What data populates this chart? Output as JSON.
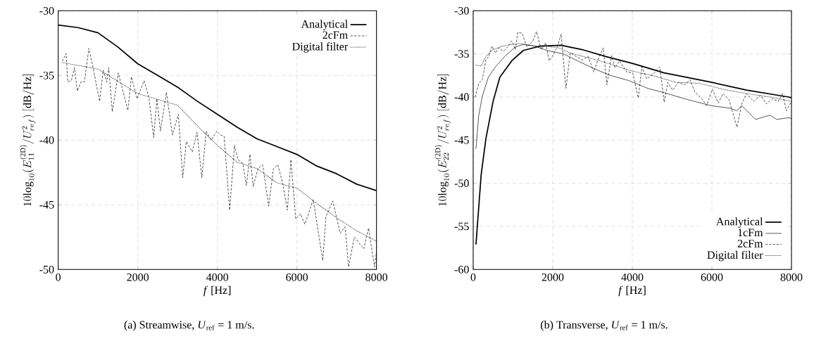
{
  "chart_data": [
    {
      "type": "line",
      "xlabel": "*f* [Hz]",
      "ylabel": "10\\mathrm{log}_{10}(E_{11}^{(\\mathrm{2D})}/U_{ref}^{2})\\ [\\mathrm{dB/Hz}]",
      "annotations": [
        "(a) Streamwise, *U*$_{ref}$ = 1 m/s."
      ],
      "xlim": [
        0,
        8000
      ],
      "ylim": [
        -50,
        -30
      ],
      "xticks": [
        0,
        2000,
        4000,
        6000,
        8000
      ],
      "yticks": [
        -50,
        -45,
        -40,
        -35,
        -30
      ],
      "grid": true,
      "legend": "top right",
      "series": [
        {
          "name": "Analytical",
          "color": "#000000",
          "line_style": "solid",
          "x": [
            0,
            500,
            1000,
            1500,
            2000,
            2500,
            3000,
            3500,
            4000,
            4500,
            5000,
            5500,
            6000,
            6500,
            7000,
            7500,
            8000
          ],
          "values": [
            -31.1,
            -31.3,
            -31.7,
            -32.8,
            -34.1,
            -35.0,
            -35.9,
            -37.0,
            -38.0,
            -39.0,
            -39.9,
            -40.5,
            -41.1,
            -42.0,
            -42.6,
            -43.4,
            -43.9
          ]
        },
        {
          "name": "2cFm",
          "color": "#000000",
          "line_style": "dashed",
          "x": [
            100,
            200,
            240,
            330,
            410,
            480,
            570,
            660,
            770,
            890,
            1040,
            1130,
            1220,
            1270,
            1360,
            1510,
            1750,
            1840,
            1980,
            2160,
            2280,
            2400,
            2480,
            2570,
            2720,
            2870,
            3020,
            3130,
            3220,
            3370,
            3490,
            3610,
            3720,
            3840,
            3990,
            4080,
            4170,
            4310,
            4430,
            4520,
            4640,
            4730,
            4820,
            4900,
            5020,
            5140,
            5290,
            5410,
            5520,
            5640,
            5760,
            5850,
            5970,
            6090,
            6200,
            6410,
            6650,
            6730,
            6900,
            7090,
            7210,
            7300,
            7440,
            7680,
            7800,
            7950,
            8000
          ],
          "values": [
            -33.9,
            -33.3,
            -35.5,
            -35.4,
            -34.4,
            -36.2,
            -35.5,
            -35.5,
            -32.9,
            -34.6,
            -37.0,
            -34.6,
            -35.5,
            -34.4,
            -37.8,
            -34.8,
            -37.7,
            -35.1,
            -36.8,
            -35.4,
            -36.7,
            -39.8,
            -36.8,
            -39.3,
            -36.3,
            -39.6,
            -38.0,
            -42.9,
            -40.1,
            -40.9,
            -39.4,
            -42.9,
            -39.3,
            -40.0,
            -39.3,
            -39.6,
            -39.7,
            -45.4,
            -40.4,
            -41.5,
            -41.8,
            -43.5,
            -41.1,
            -43.6,
            -42.2,
            -41.9,
            -45.1,
            -42.2,
            -41.9,
            -43.3,
            -45.4,
            -41.5,
            -46.1,
            -45.7,
            -46.5,
            -44.6,
            -49.3,
            -45.9,
            -44.7,
            -47.2,
            -46.7,
            -49.8,
            -47.5,
            -48.4,
            -46.8,
            -49.8,
            -48.6
          ]
        },
        {
          "name": "Digital filter",
          "color": "#000000",
          "line_style": "dotted",
          "x": [
            100,
            1000,
            2000,
            3000,
            3500,
            4000,
            4500,
            5000,
            5500,
            6000,
            6500,
            7000,
            7500,
            8000
          ],
          "values": [
            -34.0,
            -34.5,
            -36.4,
            -37.3,
            -38.9,
            -40.4,
            -41.7,
            -42.2,
            -43.3,
            -43.7,
            -44.9,
            -46.0,
            -47.0,
            -47.8
          ]
        }
      ]
    },
    {
      "type": "line",
      "xlabel": "*f* [Hz]",
      "ylabel": "10\\mathrm{log}_{10}(E_{22}^{(\\mathrm{2D})}/U_{ref}^{2})\\ [\\mathrm{dB/Hz}]",
      "annotations": [
        "(b) Transverse, *U*$_{ref}$ = 1 m/s."
      ],
      "xlim": [
        0,
        8000
      ],
      "ylim": [
        -60,
        -30
      ],
      "xticks": [
        0,
        2000,
        4000,
        6000,
        8000
      ],
      "yticks": [
        -60,
        -55,
        -50,
        -45,
        -40,
        -35,
        -30
      ],
      "grid": true,
      "legend": "bottom right",
      "series": [
        {
          "name": "Analytical",
          "color": "#000000",
          "line_style": "solid",
          "x": [
            70,
            200,
            320,
            500,
            670,
            970,
            1260,
            1680,
            2210,
            2740,
            3330,
            4000,
            4800,
            6000,
            6870,
            7930,
            8000
          ],
          "values": [
            -57.1,
            -49.0,
            -44.8,
            -40.5,
            -37.7,
            -35.8,
            -34.6,
            -34.1,
            -34.0,
            -34.5,
            -35.3,
            -36.1,
            -37.2,
            -38.3,
            -39.2,
            -40.0,
            -40.1
          ]
        },
        {
          "name": "1cFm",
          "color": "#000000",
          "line_style": "solid",
          "x": [
            70,
            140,
            230,
            380,
            560,
            790,
            1060,
            1260,
            1560,
            1850,
            2270,
            2620,
            3030,
            3450,
            3920,
            4390,
            4800,
            5390,
            5980,
            6460,
            6630,
            6750,
            7100,
            7460,
            7630,
            7930,
            8000
          ],
          "values": [
            -46.0,
            -42.1,
            -39.9,
            -37.7,
            -36.5,
            -35.3,
            -34.2,
            -33.9,
            -34.1,
            -34.6,
            -35.0,
            -35.8,
            -36.7,
            -37.5,
            -38.1,
            -39.0,
            -39.5,
            -40.3,
            -41.0,
            -41.3,
            -41.6,
            -41.0,
            -42.6,
            -42.1,
            -42.6,
            -42.4,
            -42.5
          ]
        },
        {
          "name": "2cFm",
          "color": "#000000",
          "line_style": "dashed",
          "x": [
            50,
            140,
            230,
            320,
            380,
            470,
            560,
            640,
            760,
            880,
            970,
            1060,
            1120,
            1230,
            1350,
            1500,
            1590,
            1710,
            1820,
            1910,
            2000,
            2120,
            2210,
            2330,
            2440,
            2590,
            2740,
            2890,
            3030,
            3150,
            3270,
            3360,
            3480,
            3560,
            3680,
            3860,
            4010,
            4150,
            4240,
            4360,
            4510,
            4690,
            4800,
            4890,
            5010,
            5160,
            5310,
            5450,
            5570,
            5750,
            5870,
            6010,
            6160,
            6280,
            6430,
            6630,
            6750,
            6870,
            7050,
            7220,
            7370,
            7520,
            7670,
            7780,
            7870,
            8000
          ],
          "values": [
            -40.0,
            -38.4,
            -38.0,
            -35.6,
            -35.4,
            -34.1,
            -34.9,
            -34.3,
            -34.7,
            -34.1,
            -33.5,
            -34.5,
            -32.5,
            -32.6,
            -34.2,
            -33.5,
            -32.4,
            -34.5,
            -33.7,
            -35.8,
            -35.2,
            -34.1,
            -32.7,
            -39.0,
            -34.9,
            -35.3,
            -35.7,
            -35.3,
            -37.1,
            -35.5,
            -34.3,
            -38.6,
            -35.2,
            -36.6,
            -35.8,
            -37.1,
            -37.2,
            -40.1,
            -36.5,
            -37.9,
            -37.4,
            -36.5,
            -40.6,
            -38.3,
            -39.2,
            -38.3,
            -38.6,
            -38.0,
            -39.4,
            -40.2,
            -41.0,
            -39.1,
            -40.7,
            -39.6,
            -40.3,
            -43.5,
            -40.8,
            -39.6,
            -40.5,
            -39.8,
            -40.8,
            -40.2,
            -40.5,
            -39.6,
            -41.6,
            -40.5
          ]
        },
        {
          "name": "Digital filter",
          "color": "#000000",
          "line_style": "dotted",
          "x": [
            70,
            200,
            320,
            500,
            730,
            970,
            1200,
            1560,
            1850,
            2150,
            2440,
            2860,
            3330,
            3920,
            4510,
            5100,
            5690,
            6280,
            6870,
            7460,
            8000
          ],
          "values": [
            -36.3,
            -36.4,
            -35.3,
            -34.5,
            -34.1,
            -33.9,
            -33.8,
            -34.1,
            -34.1,
            -34.3,
            -34.9,
            -35.4,
            -36.0,
            -36.9,
            -37.5,
            -38.3,
            -38.4,
            -39.1,
            -39.6,
            -40.0,
            -40.5
          ]
        }
      ]
    }
  ]
}
